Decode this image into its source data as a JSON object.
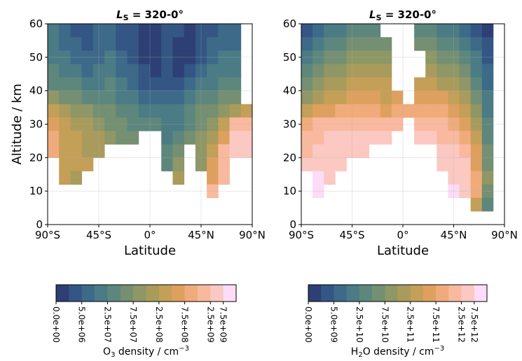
{
  "chart_data": [
    {
      "type": "heatmap",
      "title": {
        "main": "L",
        "sub": "S",
        "rest": " = 320-0°"
      },
      "xlabel": "Latitude",
      "ylabel": "Altitude / km",
      "xlim": [
        -90,
        90
      ],
      "ylim": [
        0,
        60
      ],
      "xticks": [
        {
          "value": -90,
          "label": "90°S"
        },
        {
          "value": -45,
          "label": "45°S"
        },
        {
          "value": 0,
          "label": "0°"
        },
        {
          "value": 45,
          "label": "45°N"
        },
        {
          "value": 90,
          "label": "90°N"
        }
      ],
      "yticks": [
        0,
        10,
        20,
        30,
        40,
        50,
        60
      ],
      "grid": true,
      "x_edges": [
        -90,
        -80,
        -70,
        -60,
        -50,
        -40,
        -30,
        -20,
        -10,
        0,
        10,
        20,
        30,
        40,
        50,
        60,
        70,
        80,
        90
      ],
      "y_edges": [
        60,
        56,
        52,
        48,
        44,
        40,
        36,
        32,
        28,
        24,
        20,
        16,
        12,
        8,
        4,
        0
      ],
      "z": [
        [
          20000000.0,
          7000000.0,
          4000000.0,
          4000000.0,
          7000000.0,
          7000000.0,
          4000000.0,
          4000000.0,
          1000000.0,
          1000000.0,
          4000000.0,
          4000000.0,
          1000000.0,
          4000000.0,
          4000000.0,
          7000000.0,
          7000000.0,
          null
        ],
        [
          20000000.0,
          7000000.0,
          7000000.0,
          4000000.0,
          7000000.0,
          7000000.0,
          4000000.0,
          4000000.0,
          1000000.0,
          1000000.0,
          4000000.0,
          1000000.0,
          1000000.0,
          4000000.0,
          7000000.0,
          7000000.0,
          7000000.0,
          null
        ],
        [
          20000000.0,
          20000000.0,
          7000000.0,
          7000000.0,
          7000000.0,
          20000000.0,
          7000000.0,
          4000000.0,
          1000000.0,
          1000000.0,
          4000000.0,
          1000000.0,
          1000000.0,
          4000000.0,
          7000000.0,
          20000000.0,
          20000000.0,
          null
        ],
        [
          40000000.0,
          20000000.0,
          20000000.0,
          7000000.0,
          20000000.0,
          20000000.0,
          7000000.0,
          7000000.0,
          4000000.0,
          1000000.0,
          4000000.0,
          1000000.0,
          4000000.0,
          7000000.0,
          20000000.0,
          20000000.0,
          20000000.0,
          null
        ],
        [
          40000000.0,
          40000000.0,
          40000000.0,
          20000000.0,
          20000000.0,
          40000000.0,
          20000000.0,
          7000000.0,
          4000000.0,
          4000000.0,
          4000000.0,
          4000000.0,
          7000000.0,
          20000000.0,
          20000000.0,
          40000000.0,
          40000000.0,
          null
        ],
        [
          90000000.0,
          60000000.0,
          60000000.0,
          40000000.0,
          40000000.0,
          40000000.0,
          20000000.0,
          20000000.0,
          7000000.0,
          7000000.0,
          7000000.0,
          7000000.0,
          20000000.0,
          40000000.0,
          40000000.0,
          60000000.0,
          60000000.0,
          null
        ],
        [
          400000000.0,
          200000000.0,
          90000000.0,
          90000000.0,
          60000000.0,
          60000000.0,
          40000000.0,
          40000000.0,
          20000000.0,
          20000000.0,
          20000000.0,
          20000000.0,
          40000000.0,
          60000000.0,
          60000000.0,
          90000000.0,
          200000000.0,
          400000000.0
        ],
        [
          600000000.0,
          400000000.0,
          200000000.0,
          200000000.0,
          90000000.0,
          60000000.0,
          60000000.0,
          40000000.0,
          40000000.0,
          40000000.0,
          20000000.0,
          20000000.0,
          40000000.0,
          60000000.0,
          90000000.0,
          400000000.0,
          2000000000.0,
          2000000000.0
        ],
        [
          900000000.0,
          400000000.0,
          400000000.0,
          200000000.0,
          200000000.0,
          90000000.0,
          60000000.0,
          60000000.0,
          null,
          null,
          20000000.0,
          40000000.0,
          60000000.0,
          90000000.0,
          200000000.0,
          600000000.0,
          5000000000.0,
          5000000000.0
        ],
        [
          900000000.0,
          400000000.0,
          400000000.0,
          200000000.0,
          200000000.0,
          null,
          null,
          null,
          null,
          null,
          40000000.0,
          60000000.0,
          null,
          90000000.0,
          400000000.0,
          2000000000.0,
          5000000000.0,
          5000000000.0
        ],
        [
          null,
          400000000.0,
          400000000.0,
          400000000.0,
          null,
          null,
          null,
          null,
          null,
          null,
          40000000.0,
          90000000.0,
          null,
          90000000.0,
          600000000.0,
          2000000000.0,
          null,
          null
        ],
        [
          null,
          400000000.0,
          200000000.0,
          null,
          null,
          null,
          null,
          null,
          null,
          null,
          null,
          200000000.0,
          null,
          null,
          600000000.0,
          2000000000.0,
          null,
          null
        ],
        [
          null,
          null,
          null,
          null,
          null,
          null,
          null,
          null,
          null,
          null,
          null,
          null,
          null,
          null,
          2000000000.0,
          null,
          null,
          null
        ],
        [
          null,
          null,
          null,
          null,
          null,
          null,
          null,
          null,
          null,
          null,
          null,
          null,
          null,
          null,
          null,
          null,
          null,
          null
        ],
        [
          null,
          null,
          null,
          null,
          null,
          null,
          null,
          null,
          null,
          null,
          null,
          null,
          null,
          null,
          null,
          null,
          null,
          null
        ]
      ],
      "colorbar": {
        "label": {
          "main": "O",
          "sub": "3",
          "rest": " density / cm",
          "sup": "−3"
        },
        "colors": [
          "#2d3f74",
          "#335684",
          "#3d6a88",
          "#4b7b85",
          "#5d877c",
          "#748f71",
          "#8e9765",
          "#a99b5b",
          "#c49f57",
          "#dea05e",
          "#f0ab7b",
          "#f9b99f",
          "#fbc8c2",
          "#fcdcf7"
        ],
        "levels": [
          0,
          2500000.0,
          5000000.0,
          10000000.0,
          25000000.0,
          50000000.0,
          75000000.0,
          100000000.0,
          250000000.0,
          500000000.0,
          750000000.0,
          1000000000.0,
          2500000000.0,
          7500000000.0,
          10000000000.0
        ],
        "ticks": [
          {
            "value": 0,
            "label": "0.0e+00"
          },
          {
            "value": 5000000.0,
            "label": "5.0e+06"
          },
          {
            "value": 25000000.0,
            "label": "2.5e+07"
          },
          {
            "value": 75000000.0,
            "label": "7.5e+07"
          },
          {
            "value": 250000000.0,
            "label": "2.5e+08"
          },
          {
            "value": 750000000.0,
            "label": "7.5e+08"
          },
          {
            "value": 2500000000.0,
            "label": "2.5e+09"
          },
          {
            "value": 7500000000.0,
            "label": "7.5e+09"
          }
        ]
      }
    },
    {
      "type": "heatmap",
      "title": {
        "main": "L",
        "sub": "S",
        "rest": " = 320-0°"
      },
      "xlabel": "Latitude",
      "xlim": [
        -90,
        90
      ],
      "ylim": [
        0,
        60
      ],
      "xticks": [
        {
          "value": -90,
          "label": "90°S"
        },
        {
          "value": -45,
          "label": "45°S"
        },
        {
          "value": 0,
          "label": "0°"
        },
        {
          "value": 45,
          "label": "45°N"
        },
        {
          "value": 90,
          "label": "90°N"
        }
      ],
      "yticks": [
        0,
        10,
        20,
        30,
        40,
        50,
        60
      ],
      "grid": true,
      "x_edges": [
        -90,
        -80,
        -70,
        -60,
        -50,
        -40,
        -30,
        -20,
        -10,
        0,
        10,
        20,
        30,
        40,
        50,
        60,
        70,
        80,
        90
      ],
      "y_edges": [
        60,
        56,
        52,
        48,
        44,
        40,
        36,
        32,
        28,
        24,
        20,
        16,
        12,
        8,
        4,
        0
      ],
      "z": [
        [
          4000000000.0,
          7000000000.0,
          20000000000.0,
          20000000000.0,
          40000000000.0,
          40000000000.0,
          40000000000.0,
          null,
          null,
          null,
          40000000000.0,
          40000000000.0,
          20000000000.0,
          20000000000.0,
          7000000000.0,
          4000000000.0,
          1000000000.0,
          null
        ],
        [
          7000000000.0,
          20000000000.0,
          40000000000.0,
          40000000000.0,
          60000000000.0,
          60000000000.0,
          60000000000.0,
          60000000000.0,
          null,
          null,
          60000000000.0,
          60000000000.0,
          40000000000.0,
          40000000000.0,
          20000000000.0,
          7000000000.0,
          4000000000.0,
          null
        ],
        [
          20000000000.0,
          40000000000.0,
          60000000000.0,
          60000000000.0,
          90000000000.0,
          90000000000.0,
          90000000000.0,
          90000000000.0,
          null,
          null,
          null,
          90000000000.0,
          60000000000.0,
          60000000000.0,
          40000000000.0,
          20000000000.0,
          4000000000.0,
          null
        ],
        [
          40000000000.0,
          60000000000.0,
          90000000000.0,
          90000000000.0,
          200000000000.0,
          200000000000.0,
          200000000000.0,
          200000000000.0,
          null,
          null,
          null,
          200000000000.0,
          90000000000.0,
          90000000000.0,
          60000000000.0,
          20000000000.0,
          7000000000.0,
          null
        ],
        [
          60000000000.0,
          90000000000.0,
          200000000000.0,
          200000000000.0,
          400000000000.0,
          400000000000.0,
          400000000000.0,
          400000000000.0,
          null,
          null,
          400000000000.0,
          400000000000.0,
          200000000000.0,
          200000000000.0,
          90000000000.0,
          40000000000.0,
          7000000000.0,
          null
        ],
        [
          90000000000.0,
          200000000000.0,
          400000000000.0,
          400000000000.0,
          600000000000.0,
          600000000000.0,
          600000000000.0,
          400000000000.0,
          600000000000.0,
          null,
          600000000000.0,
          600000000000.0,
          600000000000.0,
          400000000000.0,
          200000000000.0,
          60000000000.0,
          20000000000.0,
          null
        ],
        [
          400000000000.0,
          600000000000.0,
          600000000000.0,
          900000000000.0,
          900000000000.0,
          900000000000.0,
          900000000000.0,
          600000000000.0,
          900000000000.0,
          900000000000.0,
          900000000000.0,
          900000000000.0,
          900000000000.0,
          600000000000.0,
          400000000000.0,
          90000000000.0,
          20000000000.0,
          null
        ],
        [
          900000000000.0,
          2000000000000.0,
          2000000000000.0,
          2000000000000.0,
          2000000000000.0,
          2000000000000.0,
          2000000000000.0,
          2000000000000.0,
          2000000000000.0,
          null,
          2000000000000.0,
          2000000000000.0,
          2000000000000.0,
          900000000000.0,
          600000000000.0,
          200000000000.0,
          40000000000.0,
          null
        ],
        [
          2000000000000.0,
          2000000000000.0,
          5000000000000.0,
          5000000000000.0,
          5000000000000.0,
          5000000000000.0,
          5000000000000.0,
          5000000000000.0,
          null,
          null,
          5000000000000.0,
          5000000000000.0,
          2000000000000.0,
          2000000000000.0,
          900000000000.0,
          400000000000.0,
          40000000000.0,
          null
        ],
        [
          2000000000000.0,
          5000000000000.0,
          5000000000000.0,
          5000000000000.0,
          5000000000000.0,
          5000000000000.0,
          null,
          null,
          null,
          null,
          null,
          null,
          5000000000000.0,
          5000000000000.0,
          2000000000000.0,
          600000000000.0,
          60000000000.0,
          null
        ],
        [
          5000000000000.0,
          5000000000000.0,
          5000000000000.0,
          5000000000000.0,
          null,
          null,
          null,
          null,
          null,
          null,
          null,
          null,
          5000000000000.0,
          5000000000000.0,
          5000000000000.0,
          600000000000.0,
          60000000000.0,
          null
        ],
        [
          null,
          9000000000000.0,
          5000000000000.0,
          null,
          null,
          null,
          null,
          null,
          null,
          null,
          null,
          null,
          null,
          5000000000000.0,
          5000000000000.0,
          900000000000.0,
          90000000000.0,
          null
        ],
        [
          null,
          9000000000000.0,
          null,
          null,
          null,
          null,
          null,
          null,
          null,
          null,
          null,
          null,
          null,
          9000000000000.0,
          5000000000000.0,
          900000000000.0,
          60000000000.0,
          null
        ],
        [
          null,
          null,
          null,
          null,
          null,
          null,
          null,
          null,
          null,
          null,
          null,
          null,
          null,
          null,
          null,
          400000000000.0,
          40000000000.0,
          null
        ],
        [
          null,
          null,
          null,
          null,
          null,
          null,
          null,
          null,
          null,
          null,
          null,
          null,
          null,
          null,
          null,
          null,
          null,
          null
        ]
      ],
      "colorbar": {
        "label": {
          "main": "H",
          "sub": "2",
          "rest": "O density / cm",
          "sup": "−3"
        },
        "colors": [
          "#2d3f74",
          "#335684",
          "#3d6a88",
          "#4b7b85",
          "#5d877c",
          "#748f71",
          "#8e9765",
          "#a99b5b",
          "#c49f57",
          "#dea05e",
          "#f0ab7b",
          "#f9b99f",
          "#fbc8c2",
          "#fcdcf7"
        ],
        "levels": [
          0,
          2500000000.0,
          5000000000.0,
          10000000000.0,
          25000000000.0,
          50000000000.0,
          75000000000.0,
          100000000000.0,
          250000000000.0,
          500000000000.0,
          750000000000.0,
          1000000000000.0,
          2500000000000.0,
          7500000000000.0,
          10000000000000.0
        ],
        "ticks": [
          {
            "value": 0,
            "label": "0.0e+00"
          },
          {
            "value": 5000000000.0,
            "label": "5.0e+09"
          },
          {
            "value": 25000000000.0,
            "label": "2.5e+10"
          },
          {
            "value": 75000000000.0,
            "label": "7.5e+10"
          },
          {
            "value": 250000000000.0,
            "label": "2.5e+11"
          },
          {
            "value": 750000000000.0,
            "label": "7.5e+11"
          },
          {
            "value": 2500000000000.0,
            "label": "2.5e+12"
          },
          {
            "value": 7500000000000.0,
            "label": "7.5e+12"
          }
        ]
      }
    }
  ]
}
